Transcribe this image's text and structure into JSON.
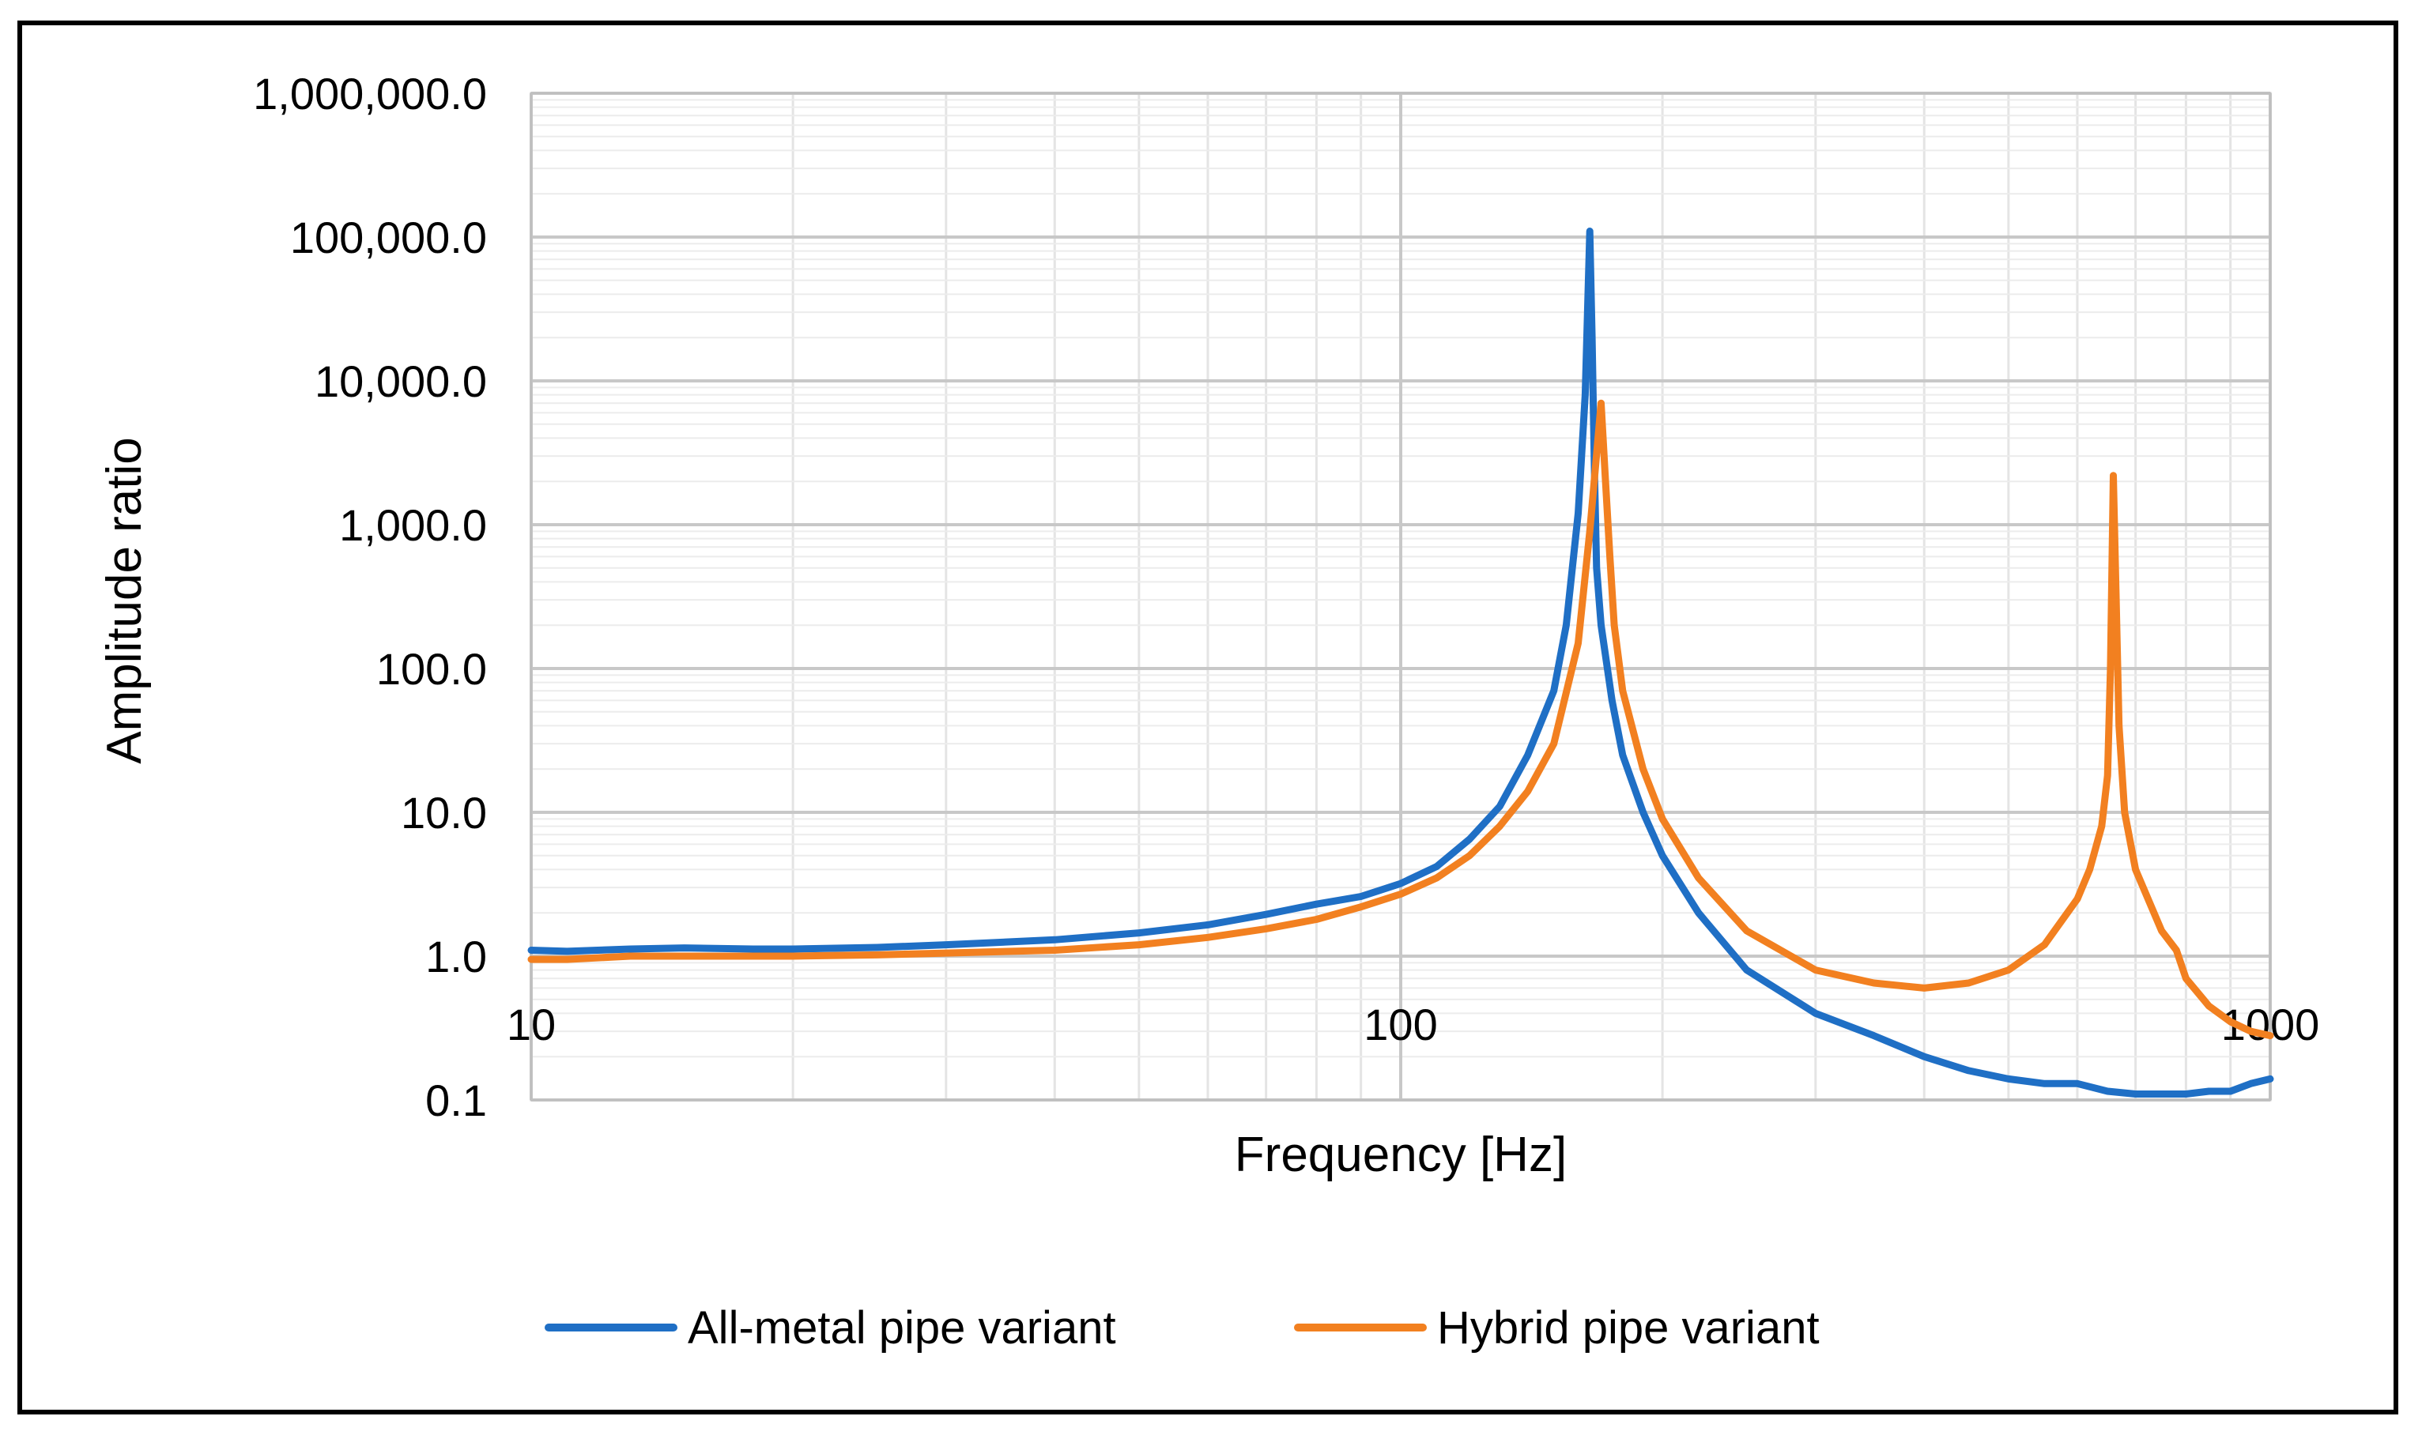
{
  "chart_data": {
    "type": "line",
    "title": "",
    "xlabel": "Frequency [Hz]",
    "ylabel": "Amplitude ratio",
    "xscale": "log",
    "yscale": "log",
    "xlim": [
      10,
      1000
    ],
    "ylim": [
      0.1,
      1000000
    ],
    "grid": true,
    "legend_position": "bottom",
    "x_ticks": [
      {
        "value": 10,
        "label": "10"
      },
      {
        "value": 100,
        "label": "100"
      },
      {
        "value": 1000,
        "label": "1000"
      }
    ],
    "y_ticks": [
      {
        "value": 0.1,
        "label": "0.1"
      },
      {
        "value": 1,
        "label": "1.0"
      },
      {
        "value": 10,
        "label": "10.0"
      },
      {
        "value": 100,
        "label": "100.0"
      },
      {
        "value": 1000,
        "label": "1,000.0"
      },
      {
        "value": 10000,
        "label": "10,000.0"
      },
      {
        "value": 100000,
        "label": "100,000.0"
      },
      {
        "value": 1000000,
        "label": "1,000,000.0"
      }
    ],
    "series": [
      {
        "name": "All-metal pipe variant",
        "color": "#1f6fc5",
        "x": [
          10,
          11,
          13,
          15,
          18,
          20,
          25,
          30,
          40,
          50,
          60,
          70,
          80,
          90,
          100,
          110,
          120,
          130,
          140,
          150,
          155,
          160,
          163,
          165,
          166,
          167,
          168,
          170,
          175,
          180,
          190,
          200,
          220,
          250,
          300,
          350,
          400,
          450,
          500,
          550,
          600,
          650,
          700,
          750,
          800,
          850,
          900,
          950,
          1000
        ],
        "y": [
          1.1,
          1.08,
          1.12,
          1.14,
          1.12,
          1.12,
          1.15,
          1.2,
          1.3,
          1.45,
          1.65,
          1.95,
          2.3,
          2.6,
          3.2,
          4.2,
          6.5,
          11,
          25,
          70,
          200,
          1200,
          8000,
          110000,
          20000,
          2500,
          500,
          200,
          60,
          25,
          10,
          5,
          2,
          0.8,
          0.4,
          0.28,
          0.2,
          0.16,
          0.14,
          0.13,
          0.13,
          0.115,
          0.11,
          0.11,
          0.11,
          0.115,
          0.115,
          0.13,
          0.14
        ]
      },
      {
        "name": "Hybrid pipe variant",
        "color": "#f28020",
        "x": [
          10,
          11,
          13,
          15,
          20,
          25,
          30,
          40,
          50,
          60,
          70,
          80,
          90,
          100,
          110,
          120,
          130,
          140,
          150,
          160,
          165,
          170,
          172,
          174,
          176,
          180,
          190,
          200,
          220,
          250,
          300,
          350,
          400,
          450,
          500,
          550,
          600,
          620,
          640,
          650,
          655,
          660,
          665,
          670,
          680,
          700,
          750,
          780,
          800,
          850,
          900,
          950,
          1000
        ],
        "y": [
          0.95,
          0.95,
          1.0,
          1.0,
          1.0,
          1.02,
          1.05,
          1.1,
          1.2,
          1.35,
          1.55,
          1.8,
          2.2,
          2.7,
          3.5,
          5,
          8,
          14,
          30,
          150,
          900,
          7000,
          2000,
          600,
          200,
          70,
          20,
          9,
          3.5,
          1.5,
          0.8,
          0.65,
          0.6,
          0.65,
          0.8,
          1.2,
          2.5,
          4,
          8,
          18,
          100,
          2200,
          300,
          40,
          10,
          4,
          1.5,
          1.1,
          0.7,
          0.45,
          0.35,
          0.3,
          0.28
        ]
      }
    ]
  }
}
